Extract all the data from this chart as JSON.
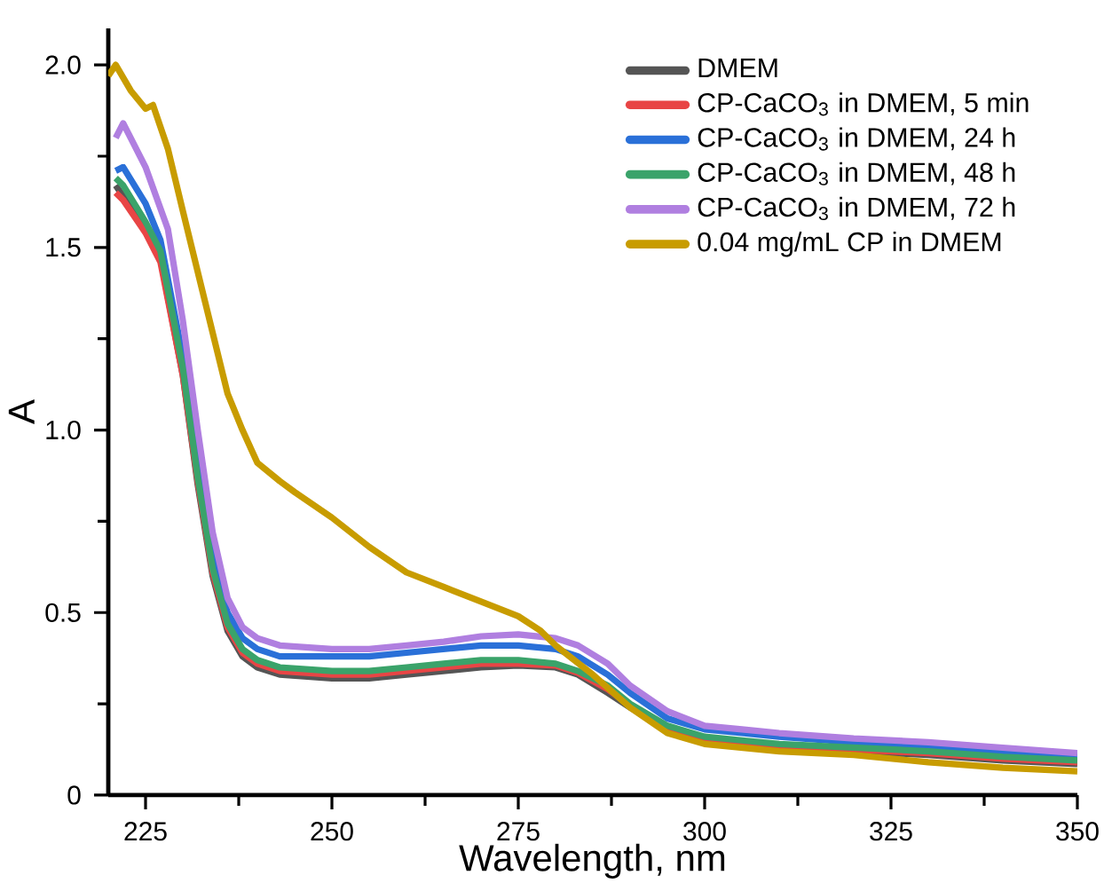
{
  "chart_data": {
    "type": "line",
    "xlabel": "Wavelength, nm",
    "ylabel": "A",
    "xlim": [
      220,
      350
    ],
    "ylim": [
      0,
      2.1
    ],
    "xticks": [
      225,
      {
        "value": 237.5,
        "label": null
      },
      250,
      {
        "value": 262.5,
        "label": null
      },
      275,
      {
        "value": 287.5,
        "label": null
      },
      300,
      {
        "value": 312.5,
        "label": null
      },
      325,
      {
        "value": 337.5,
        "label": null
      },
      350
    ],
    "yticks": [
      {
        "value": 0,
        "label": "0"
      },
      {
        "value": 0.25,
        "label": null
      },
      {
        "value": 0.5,
        "label": "0.5"
      },
      {
        "value": 0.75,
        "label": null
      },
      {
        "value": 1.0,
        "label": "1.0"
      },
      {
        "value": 1.25,
        "label": null
      },
      {
        "value": 1.5,
        "label": "1.5"
      },
      {
        "value": 1.75,
        "label": null
      },
      {
        "value": 2.0,
        "label": "2.0"
      }
    ],
    "legend": "top right",
    "grid": false,
    "marker": "none",
    "line_style": "solid",
    "series": [
      {
        "name": "DMEM",
        "color": "#555555",
        "x": [
          221,
          222,
          225,
          227,
          230,
          232,
          234,
          236,
          238,
          240,
          243,
          250,
          255,
          260,
          265,
          270,
          275,
          280,
          283,
          287,
          290,
          295,
          300,
          305,
          310,
          320,
          330,
          340,
          350
        ],
        "values": [
          1.67,
          1.64,
          1.55,
          1.47,
          1.15,
          0.85,
          0.6,
          0.45,
          0.38,
          0.35,
          0.33,
          0.32,
          0.32,
          0.33,
          0.34,
          0.35,
          0.355,
          0.35,
          0.33,
          0.28,
          0.24,
          0.18,
          0.15,
          0.14,
          0.13,
          0.12,
          0.11,
          0.095,
          0.085
        ]
      },
      {
        "name": "CP-CaCO$_{3}$ in DMEM, 5 min",
        "color": "#e84545",
        "x": [
          221,
          222,
          225,
          227,
          230,
          232,
          234,
          236,
          238,
          240,
          243,
          250,
          255,
          260,
          265,
          270,
          275,
          280,
          283,
          287,
          290,
          295,
          300,
          305,
          310,
          320,
          330,
          340,
          350
        ],
        "values": [
          1.65,
          1.63,
          1.54,
          1.46,
          1.15,
          0.86,
          0.61,
          0.46,
          0.39,
          0.36,
          0.34,
          0.33,
          0.33,
          0.34,
          0.35,
          0.36,
          0.36,
          0.355,
          0.335,
          0.29,
          0.245,
          0.185,
          0.155,
          0.145,
          0.135,
          0.125,
          0.115,
          0.1,
          0.09
        ]
      },
      {
        "name": "CP-CaCO$_{3}$ in DMEM, 24 h",
        "color": "#2a70d8",
        "x": [
          221,
          222,
          225,
          227,
          230,
          232,
          234,
          236,
          238,
          240,
          243,
          250,
          255,
          260,
          265,
          270,
          275,
          280,
          283,
          287,
          290,
          295,
          300,
          305,
          310,
          320,
          330,
          340,
          350
        ],
        "values": [
          1.71,
          1.72,
          1.62,
          1.52,
          1.2,
          0.9,
          0.65,
          0.5,
          0.43,
          0.4,
          0.38,
          0.38,
          0.38,
          0.39,
          0.4,
          0.41,
          0.41,
          0.4,
          0.38,
          0.33,
          0.28,
          0.21,
          0.18,
          0.17,
          0.16,
          0.145,
          0.135,
          0.12,
          0.11
        ]
      },
      {
        "name": "CP-CaCO$_{3}$ in DMEM, 48 h",
        "color": "#3aa36a",
        "x": [
          221,
          222,
          225,
          227,
          230,
          232,
          234,
          236,
          238,
          240,
          243,
          250,
          255,
          260,
          265,
          270,
          275,
          280,
          283,
          287,
          290,
          295,
          300,
          305,
          310,
          320,
          330,
          340,
          350
        ],
        "values": [
          1.69,
          1.67,
          1.57,
          1.49,
          1.17,
          0.87,
          0.62,
          0.47,
          0.4,
          0.37,
          0.35,
          0.34,
          0.34,
          0.35,
          0.36,
          0.37,
          0.37,
          0.36,
          0.34,
          0.3,
          0.25,
          0.19,
          0.16,
          0.15,
          0.14,
          0.13,
          0.12,
          0.105,
          0.095
        ]
      },
      {
        "name": "CP-CaCO$_{3}$ in DMEM, 72 h",
        "color": "#b07fe0",
        "x": [
          221,
          222,
          225,
          228,
          230,
          232,
          234,
          236,
          238,
          240,
          243,
          250,
          255,
          260,
          265,
          270,
          275,
          280,
          283,
          287,
          290,
          295,
          300,
          305,
          310,
          320,
          330,
          340,
          350
        ],
        "values": [
          1.8,
          1.84,
          1.72,
          1.55,
          1.3,
          1.0,
          0.72,
          0.54,
          0.46,
          0.43,
          0.41,
          0.4,
          0.4,
          0.41,
          0.42,
          0.435,
          0.44,
          0.43,
          0.41,
          0.36,
          0.3,
          0.23,
          0.19,
          0.18,
          0.17,
          0.155,
          0.145,
          0.13,
          0.115
        ]
      },
      {
        "name": "0.04 mg/mL CP in DMEM",
        "color": "#c89c00",
        "x": [
          220,
          221,
          223,
          225,
          226,
          228,
          230,
          233,
          236,
          238,
          240,
          243,
          245,
          250,
          255,
          260,
          265,
          270,
          275,
          278,
          280,
          285,
          290,
          295,
          300,
          310,
          320,
          330,
          340,
          350
        ],
        "values": [
          1.97,
          2.0,
          1.93,
          1.88,
          1.89,
          1.77,
          1.6,
          1.35,
          1.1,
          1.0,
          0.91,
          0.86,
          0.83,
          0.76,
          0.68,
          0.61,
          0.57,
          0.53,
          0.49,
          0.45,
          0.41,
          0.33,
          0.24,
          0.17,
          0.14,
          0.12,
          0.11,
          0.09,
          0.075,
          0.065
        ]
      }
    ]
  }
}
